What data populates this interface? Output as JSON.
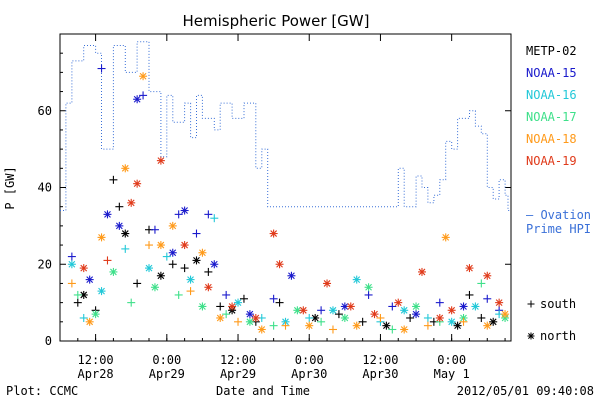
{
  "chart_data": {
    "type": "scatter",
    "title": "Hemispheric Power [GW]",
    "xlabel": "Date and Time",
    "ylabel": "P [GW]",
    "ylim": [
      0,
      80
    ],
    "yticks": [
      0,
      20,
      40,
      60
    ],
    "xlim": [
      "2012-04-28 06:00",
      "2012-05-01 10:00"
    ],
    "xticks": [
      {
        "t": "2012-04-28 12:00",
        "l1": "12:00",
        "l2": "Apr28"
      },
      {
        "t": "2012-04-29 00:00",
        "l1": "0:00",
        "l2": "Apr29"
      },
      {
        "t": "2012-04-29 12:00",
        "l1": "12:00",
        "l2": "Apr29"
      },
      {
        "t": "2012-04-30 00:00",
        "l1": "0:00",
        "l2": "Apr30"
      },
      {
        "t": "2012-04-30 12:00",
        "l1": "12:00",
        "l2": "Apr30"
      },
      {
        "t": "2012-05-01 00:00",
        "l1": "0:00",
        "l2": "May 1"
      }
    ],
    "legend_satellites": [
      {
        "name": "METP-02",
        "color": "#000000"
      },
      {
        "name": "NOAA-15",
        "color": "#1a1acc"
      },
      {
        "name": "NOAA-16",
        "color": "#22c8d8"
      },
      {
        "name": "NOAA-17",
        "color": "#3ee08a"
      },
      {
        "name": "NOAA-18",
        "color": "#ff9a1a"
      },
      {
        "name": "NOAA-19",
        "color": "#e03a1a"
      }
    ],
    "ovation_label": "Ovation Prime HPI",
    "ovation_label_line1": "– Ovation",
    "ovation_label_line2": "Prime HPI",
    "ovation_color": "#3a70d8",
    "markers_legend": [
      {
        "symbol": "+",
        "label": "south"
      },
      {
        "symbol": "*",
        "label": "north"
      }
    ],
    "ovation_series": [
      [
        "2012-04-28 06:00",
        34
      ],
      [
        "2012-04-28 07:00",
        34
      ],
      [
        "2012-04-28 07:00",
        62
      ],
      [
        "2012-04-28 08:00",
        62
      ],
      [
        "2012-04-28 08:00",
        73
      ],
      [
        "2012-04-28 10:00",
        73
      ],
      [
        "2012-04-28 10:00",
        77
      ],
      [
        "2012-04-28 12:00",
        77
      ],
      [
        "2012-04-28 12:00",
        75
      ],
      [
        "2012-04-28 13:00",
        75
      ],
      [
        "2012-04-28 13:00",
        50
      ],
      [
        "2012-04-28 15:00",
        50
      ],
      [
        "2012-04-28 15:00",
        77
      ],
      [
        "2012-04-28 17:00",
        77
      ],
      [
        "2012-04-28 17:00",
        70
      ],
      [
        "2012-04-28 19:00",
        70
      ],
      [
        "2012-04-28 19:00",
        78
      ],
      [
        "2012-04-28 21:00",
        78
      ],
      [
        "2012-04-28 21:00",
        65
      ],
      [
        "2012-04-28 23:00",
        65
      ],
      [
        "2012-04-28 23:00",
        48
      ],
      [
        "2012-04-29 00:00",
        48
      ],
      [
        "2012-04-29 00:00",
        64
      ],
      [
        "2012-04-29 01:00",
        64
      ],
      [
        "2012-04-29 01:00",
        57
      ],
      [
        "2012-04-29 03:00",
        57
      ],
      [
        "2012-04-29 03:00",
        62
      ],
      [
        "2012-04-29 04:00",
        62
      ],
      [
        "2012-04-29 04:00",
        53
      ],
      [
        "2012-04-29 05:00",
        53
      ],
      [
        "2012-04-29 05:00",
        64
      ],
      [
        "2012-04-29 06:00",
        64
      ],
      [
        "2012-04-29 06:00",
        58
      ],
      [
        "2012-04-29 08:00",
        58
      ],
      [
        "2012-04-29 08:00",
        55
      ],
      [
        "2012-04-29 09:00",
        55
      ],
      [
        "2012-04-29 09:00",
        62
      ],
      [
        "2012-04-29 11:00",
        62
      ],
      [
        "2012-04-29 11:00",
        58
      ],
      [
        "2012-04-29 13:00",
        58
      ],
      [
        "2012-04-29 13:00",
        62
      ],
      [
        "2012-04-29 15:00",
        62
      ],
      [
        "2012-04-29 15:00",
        45
      ],
      [
        "2012-04-29 16:00",
        45
      ],
      [
        "2012-04-29 16:00",
        50
      ],
      [
        "2012-04-29 17:00",
        50
      ],
      [
        "2012-04-29 17:00",
        35
      ],
      [
        "2012-04-30 15:00",
        35
      ],
      [
        "2012-04-30 15:00",
        45
      ],
      [
        "2012-04-30 16:00",
        45
      ],
      [
        "2012-04-30 16:00",
        35
      ],
      [
        "2012-04-30 18:00",
        35
      ],
      [
        "2012-04-30 18:00",
        43
      ],
      [
        "2012-04-30 19:00",
        43
      ],
      [
        "2012-04-30 19:00",
        40
      ],
      [
        "2012-04-30 20:00",
        40
      ],
      [
        "2012-04-30 20:00",
        36
      ],
      [
        "2012-04-30 21:00",
        36
      ],
      [
        "2012-04-30 21:00",
        38
      ],
      [
        "2012-04-30 22:00",
        38
      ],
      [
        "2012-04-30 22:00",
        42
      ],
      [
        "2012-04-30 23:00",
        42
      ],
      [
        "2012-04-30 23:00",
        52
      ],
      [
        "2012-05-01 00:00",
        52
      ],
      [
        "2012-05-01 00:00",
        50
      ],
      [
        "2012-05-01 01:00",
        50
      ],
      [
        "2012-05-01 01:00",
        58
      ],
      [
        "2012-05-01 03:00",
        58
      ],
      [
        "2012-05-01 03:00",
        60
      ],
      [
        "2012-05-01 04:00",
        60
      ],
      [
        "2012-05-01 04:00",
        56
      ],
      [
        "2012-05-01 05:00",
        56
      ],
      [
        "2012-05-01 05:00",
        54
      ],
      [
        "2012-05-01 06:00",
        54
      ],
      [
        "2012-05-01 06:00",
        40
      ],
      [
        "2012-05-01 07:00",
        40
      ],
      [
        "2012-05-01 07:00",
        37
      ],
      [
        "2012-05-01 08:00",
        37
      ],
      [
        "2012-05-01 08:00",
        42
      ],
      [
        "2012-05-01 09:00",
        42
      ],
      [
        "2012-05-01 09:00",
        38
      ],
      [
        "2012-05-01 09:30",
        38
      ],
      [
        "2012-05-01 09:30",
        34
      ],
      [
        "2012-05-01 10:00",
        34
      ]
    ],
    "series": [
      {
        "name": "METP-02",
        "points": [
          [
            "2012-04-28 09:00",
            10,
            "+"
          ],
          [
            "2012-04-28 10:00",
            12,
            "*"
          ],
          [
            "2012-04-28 12:00",
            8,
            "+"
          ],
          [
            "2012-04-28 15:00",
            42,
            "+"
          ],
          [
            "2012-04-28 16:00",
            35,
            "+"
          ],
          [
            "2012-04-28 17:00",
            28,
            "*"
          ],
          [
            "2012-04-28 19:00",
            15,
            "+"
          ],
          [
            "2012-04-28 21:00",
            29,
            "+"
          ],
          [
            "2012-04-28 23:00",
            17,
            "*"
          ],
          [
            "2012-04-29 01:00",
            20,
            "+"
          ],
          [
            "2012-04-29 03:00",
            19,
            "+"
          ],
          [
            "2012-04-29 05:00",
            21,
            "*"
          ],
          [
            "2012-04-29 07:00",
            18,
            "+"
          ],
          [
            "2012-04-29 09:00",
            9,
            "+"
          ],
          [
            "2012-04-29 11:00",
            8,
            "*"
          ],
          [
            "2012-04-29 13:00",
            11,
            "+"
          ],
          [
            "2012-04-29 15:00",
            5,
            "+"
          ],
          [
            "2012-04-29 19:00",
            10,
            "+"
          ],
          [
            "2012-04-30 01:00",
            6,
            "*"
          ],
          [
            "2012-04-30 05:00",
            7,
            "+"
          ],
          [
            "2012-04-30 09:00",
            5,
            "+"
          ],
          [
            "2012-04-30 13:00",
            4,
            "*"
          ],
          [
            "2012-04-30 17:00",
            6,
            "+"
          ],
          [
            "2012-04-30 21:00",
            5,
            "+"
          ],
          [
            "2012-05-01 01:00",
            4,
            "*"
          ],
          [
            "2012-05-01 03:00",
            12,
            "+"
          ],
          [
            "2012-05-01 05:00",
            6,
            "+"
          ],
          [
            "2012-05-01 07:00",
            5,
            "*"
          ]
        ]
      },
      {
        "name": "NOAA-15",
        "points": [
          [
            "2012-04-28 08:00",
            22,
            "+"
          ],
          [
            "2012-04-28 11:00",
            16,
            "*"
          ],
          [
            "2012-04-28 13:00",
            71,
            "+"
          ],
          [
            "2012-04-28 14:00",
            33,
            "*"
          ],
          [
            "2012-04-28 16:00",
            30,
            "*"
          ],
          [
            "2012-04-28 19:00",
            63,
            "*"
          ],
          [
            "2012-04-28 20:00",
            64,
            "+"
          ],
          [
            "2012-04-28 22:00",
            29,
            "+"
          ],
          [
            "2012-04-29 01:00",
            23,
            "*"
          ],
          [
            "2012-04-29 02:00",
            33,
            "+"
          ],
          [
            "2012-04-29 03:00",
            34,
            "*"
          ],
          [
            "2012-04-29 05:00",
            28,
            "+"
          ],
          [
            "2012-04-29 07:00",
            33,
            "+"
          ],
          [
            "2012-04-29 08:00",
            20,
            "*"
          ],
          [
            "2012-04-29 10:00",
            12,
            "+"
          ],
          [
            "2012-04-29 14:00",
            7,
            "*"
          ],
          [
            "2012-04-29 18:00",
            11,
            "+"
          ],
          [
            "2012-04-29 21:00",
            17,
            "*"
          ],
          [
            "2012-04-30 02:00",
            8,
            "+"
          ],
          [
            "2012-04-30 06:00",
            9,
            "*"
          ],
          [
            "2012-04-30 10:00",
            12,
            "+"
          ],
          [
            "2012-04-30 14:00",
            9,
            "+"
          ],
          [
            "2012-04-30 18:00",
            7,
            "*"
          ],
          [
            "2012-04-30 22:00",
            10,
            "+"
          ],
          [
            "2012-05-01 02:00",
            9,
            "*"
          ],
          [
            "2012-05-01 06:00",
            11,
            "+"
          ],
          [
            "2012-05-01 08:00",
            8,
            "+"
          ]
        ]
      },
      {
        "name": "NOAA-16",
        "points": [
          [
            "2012-04-28 08:00",
            20,
            "*"
          ],
          [
            "2012-04-28 10:00",
            6,
            "+"
          ],
          [
            "2012-04-28 13:00",
            13,
            "*"
          ],
          [
            "2012-04-28 17:00",
            24,
            "+"
          ],
          [
            "2012-04-28 21:00",
            19,
            "*"
          ],
          [
            "2012-04-29 00:00",
            22,
            "+"
          ],
          [
            "2012-04-29 04:00",
            16,
            "*"
          ],
          [
            "2012-04-29 08:00",
            32,
            "+"
          ],
          [
            "2012-04-29 12:00",
            10,
            "*"
          ],
          [
            "2012-04-29 16:00",
            6,
            "+"
          ],
          [
            "2012-04-29 20:00",
            5,
            "*"
          ],
          [
            "2012-04-30 00:00",
            6,
            "+"
          ],
          [
            "2012-04-30 04:00",
            8,
            "*"
          ],
          [
            "2012-04-30 08:00",
            16,
            "*"
          ],
          [
            "2012-04-30 12:00",
            5,
            "+"
          ],
          [
            "2012-04-30 16:00",
            8,
            "*"
          ],
          [
            "2012-04-30 20:00",
            6,
            "+"
          ],
          [
            "2012-05-01 00:00",
            5,
            "*"
          ],
          [
            "2012-05-01 04:00",
            9,
            "*"
          ],
          [
            "2012-05-01 08:00",
            7,
            "+"
          ]
        ]
      },
      {
        "name": "NOAA-17",
        "points": [
          [
            "2012-04-28 09:00",
            12,
            "+"
          ],
          [
            "2012-04-28 12:00",
            7,
            "*"
          ],
          [
            "2012-04-28 15:00",
            18,
            "*"
          ],
          [
            "2012-04-28 18:00",
            10,
            "+"
          ],
          [
            "2012-04-28 22:00",
            14,
            "*"
          ],
          [
            "2012-04-29 02:00",
            12,
            "+"
          ],
          [
            "2012-04-29 06:00",
            9,
            "*"
          ],
          [
            "2012-04-29 10:00",
            7,
            "+"
          ],
          [
            "2012-04-29 14:00",
            5,
            "*"
          ],
          [
            "2012-04-29 18:00",
            4,
            "+"
          ],
          [
            "2012-04-29 22:00",
            8,
            "*"
          ],
          [
            "2012-04-30 02:00",
            5,
            "+"
          ],
          [
            "2012-04-30 06:00",
            6,
            "*"
          ],
          [
            "2012-04-30 10:00",
            14,
            "*"
          ],
          [
            "2012-04-30 14:00",
            3,
            "+"
          ],
          [
            "2012-04-30 18:00",
            9,
            "*"
          ],
          [
            "2012-04-30 22:00",
            5,
            "+"
          ],
          [
            "2012-05-01 02:00",
            6,
            "*"
          ],
          [
            "2012-05-01 05:00",
            15,
            "+"
          ],
          [
            "2012-05-01 09:00",
            6,
            "*"
          ]
        ]
      },
      {
        "name": "NOAA-18",
        "points": [
          [
            "2012-04-28 08:00",
            15,
            "+"
          ],
          [
            "2012-04-28 11:00",
            5,
            "*"
          ],
          [
            "2012-04-28 13:00",
            27,
            "*"
          ],
          [
            "2012-04-28 17:00",
            45,
            "*"
          ],
          [
            "2012-04-28 20:00",
            69,
            "*"
          ],
          [
            "2012-04-28 21:00",
            25,
            "+"
          ],
          [
            "2012-04-28 23:00",
            25,
            "*"
          ],
          [
            "2012-04-29 01:00",
            30,
            "*"
          ],
          [
            "2012-04-29 04:00",
            13,
            "+"
          ],
          [
            "2012-04-29 06:00",
            23,
            "*"
          ],
          [
            "2012-04-29 09:00",
            6,
            "*"
          ],
          [
            "2012-04-29 12:00",
            5,
            "+"
          ],
          [
            "2012-04-29 16:00",
            3,
            "*"
          ],
          [
            "2012-04-29 20:00",
            4,
            "+"
          ],
          [
            "2012-04-30 00:00",
            4,
            "*"
          ],
          [
            "2012-04-30 04:00",
            3,
            "+"
          ],
          [
            "2012-04-30 08:00",
            4,
            "*"
          ],
          [
            "2012-04-30 12:00",
            6,
            "+"
          ],
          [
            "2012-04-30 16:00",
            3,
            "*"
          ],
          [
            "2012-04-30 20:00",
            4,
            "+"
          ],
          [
            "2012-04-30 23:00",
            27,
            "*"
          ],
          [
            "2012-05-01 02:00",
            5,
            "+"
          ],
          [
            "2012-05-01 06:00",
            4,
            "*"
          ],
          [
            "2012-05-01 09:00",
            7,
            "*"
          ]
        ]
      },
      {
        "name": "NOAA-19",
        "points": [
          [
            "2012-04-28 10:00",
            19,
            "*"
          ],
          [
            "2012-04-28 14:00",
            21,
            "+"
          ],
          [
            "2012-04-28 18:00",
            36,
            "*"
          ],
          [
            "2012-04-28 19:00",
            41,
            "*"
          ],
          [
            "2012-04-28 23:00",
            47,
            "*"
          ],
          [
            "2012-04-29 03:00",
            25,
            "*"
          ],
          [
            "2012-04-29 07:00",
            14,
            "*"
          ],
          [
            "2012-04-29 11:00",
            9,
            "*"
          ],
          [
            "2012-04-29 15:00",
            6,
            "*"
          ],
          [
            "2012-04-29 18:00",
            28,
            "*"
          ],
          [
            "2012-04-29 19:00",
            20,
            "*"
          ],
          [
            "2012-04-29 23:00",
            8,
            "*"
          ],
          [
            "2012-04-30 03:00",
            15,
            "*"
          ],
          [
            "2012-04-30 07:00",
            9,
            "*"
          ],
          [
            "2012-04-30 11:00",
            7,
            "*"
          ],
          [
            "2012-04-30 15:00",
            10,
            "*"
          ],
          [
            "2012-04-30 19:00",
            18,
            "*"
          ],
          [
            "2012-04-30 22:00",
            6,
            "*"
          ],
          [
            "2012-05-01 00:00",
            8,
            "*"
          ],
          [
            "2012-05-01 03:00",
            19,
            "*"
          ],
          [
            "2012-05-01 06:00",
            17,
            "*"
          ],
          [
            "2012-05-01 08:00",
            10,
            "*"
          ]
        ]
      }
    ]
  },
  "footer": {
    "left": "Plot: CCMC",
    "right": "2012/05/01 09:40:08"
  }
}
